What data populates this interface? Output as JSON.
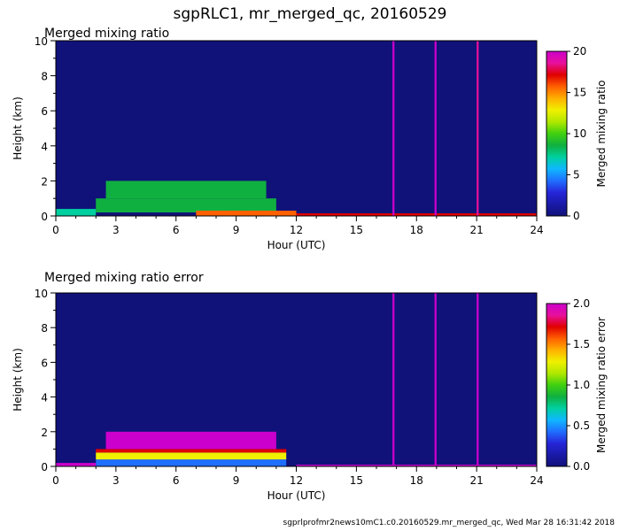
{
  "figure": {
    "title": "sgpRLC1, mr_merged_qc, 20160529",
    "footer": "sgprlprofmr2news10mC1.c0.20160529.mr_merged_qc, Wed Mar 28 16:31:42 2018"
  },
  "colormap": [
    "#11117a",
    "#1a1aa8",
    "#2626d9",
    "#1f6fff",
    "#0fb8ff",
    "#00d0a0",
    "#10b040",
    "#40d010",
    "#b0e800",
    "#f0f000",
    "#ffb000",
    "#ff6000",
    "#e00000",
    "#e8109c",
    "#cc00cc"
  ],
  "chart_data": [
    {
      "type": "heatmap",
      "title": "Merged mixing ratio",
      "xlabel": "Hour (UTC)",
      "ylabel": "Height (km)",
      "colorbar_label": "Merged mixing ratio",
      "xlim": [
        0,
        24
      ],
      "ylim": [
        0,
        10
      ],
      "clim": [
        0,
        20
      ],
      "xticks": [
        0,
        3,
        6,
        9,
        12,
        15,
        18,
        21,
        24
      ],
      "yticks": [
        0,
        2,
        4,
        6,
        8,
        10
      ],
      "cticks": [
        0,
        5,
        10,
        15,
        20
      ],
      "cticklabels": [
        "0",
        "5",
        "10",
        "15",
        "20"
      ],
      "background_value": 0,
      "regions": [
        {
          "x": [
            2,
            11
          ],
          "y": [
            0.2,
            1.0
          ],
          "value": 8
        },
        {
          "x": [
            2.5,
            10.5
          ],
          "y": [
            1.0,
            2.0
          ],
          "value": 9
        },
        {
          "x": [
            0,
            2
          ],
          "y": [
            0,
            0.4
          ],
          "value": 7
        },
        {
          "x": [
            7,
            12
          ],
          "y": [
            0,
            0.3
          ],
          "value": 15
        },
        {
          "x": [
            12,
            24
          ],
          "y": [
            0,
            0.15
          ],
          "value": 16
        },
        {
          "x": [
            16.8,
            16.9
          ],
          "y": [
            0,
            10
          ],
          "value": 19
        },
        {
          "x": [
            18.9,
            19.0
          ],
          "y": [
            0,
            10
          ],
          "value": 19
        },
        {
          "x": [
            21.0,
            21.1
          ],
          "y": [
            0,
            10
          ],
          "value": 18
        }
      ]
    },
    {
      "type": "heatmap",
      "title": "Merged mixing ratio error",
      "xlabel": "Hour (UTC)",
      "ylabel": "Height (km)",
      "colorbar_label": "Merged mixing ratio error",
      "xlim": [
        0,
        24
      ],
      "ylim": [
        0,
        10
      ],
      "clim": [
        0,
        2
      ],
      "xticks": [
        0,
        3,
        6,
        9,
        12,
        15,
        18,
        21,
        24
      ],
      "yticks": [
        0,
        2,
        4,
        6,
        8,
        10
      ],
      "cticks": [
        0,
        0.5,
        1,
        1.5,
        2
      ],
      "cticklabels": [
        "0.0",
        "0.5",
        "1.0",
        "1.5",
        "2.0"
      ],
      "background_value": 0,
      "regions": [
        {
          "x": [
            2,
            11.5
          ],
          "y": [
            0,
            0.4
          ],
          "value": 0.4
        },
        {
          "x": [
            2,
            11.5
          ],
          "y": [
            0.4,
            0.8
          ],
          "value": 1.2
        },
        {
          "x": [
            2,
            11.5
          ],
          "y": [
            0.8,
            1.0
          ],
          "value": 1.6
        },
        {
          "x": [
            2.5,
            11
          ],
          "y": [
            1.0,
            2.0
          ],
          "value": 1.9
        },
        {
          "x": [
            0,
            2
          ],
          "y": [
            0,
            0.2
          ],
          "value": 1.9
        },
        {
          "x": [
            12,
            24
          ],
          "y": [
            0,
            0.1
          ],
          "value": 1.9
        },
        {
          "x": [
            16.8,
            16.9
          ],
          "y": [
            0,
            10
          ],
          "value": 1.9
        },
        {
          "x": [
            18.9,
            19.0
          ],
          "y": [
            0,
            10
          ],
          "value": 1.9
        },
        {
          "x": [
            21.0,
            21.1
          ],
          "y": [
            0,
            10
          ],
          "value": 1.9
        }
      ]
    }
  ]
}
